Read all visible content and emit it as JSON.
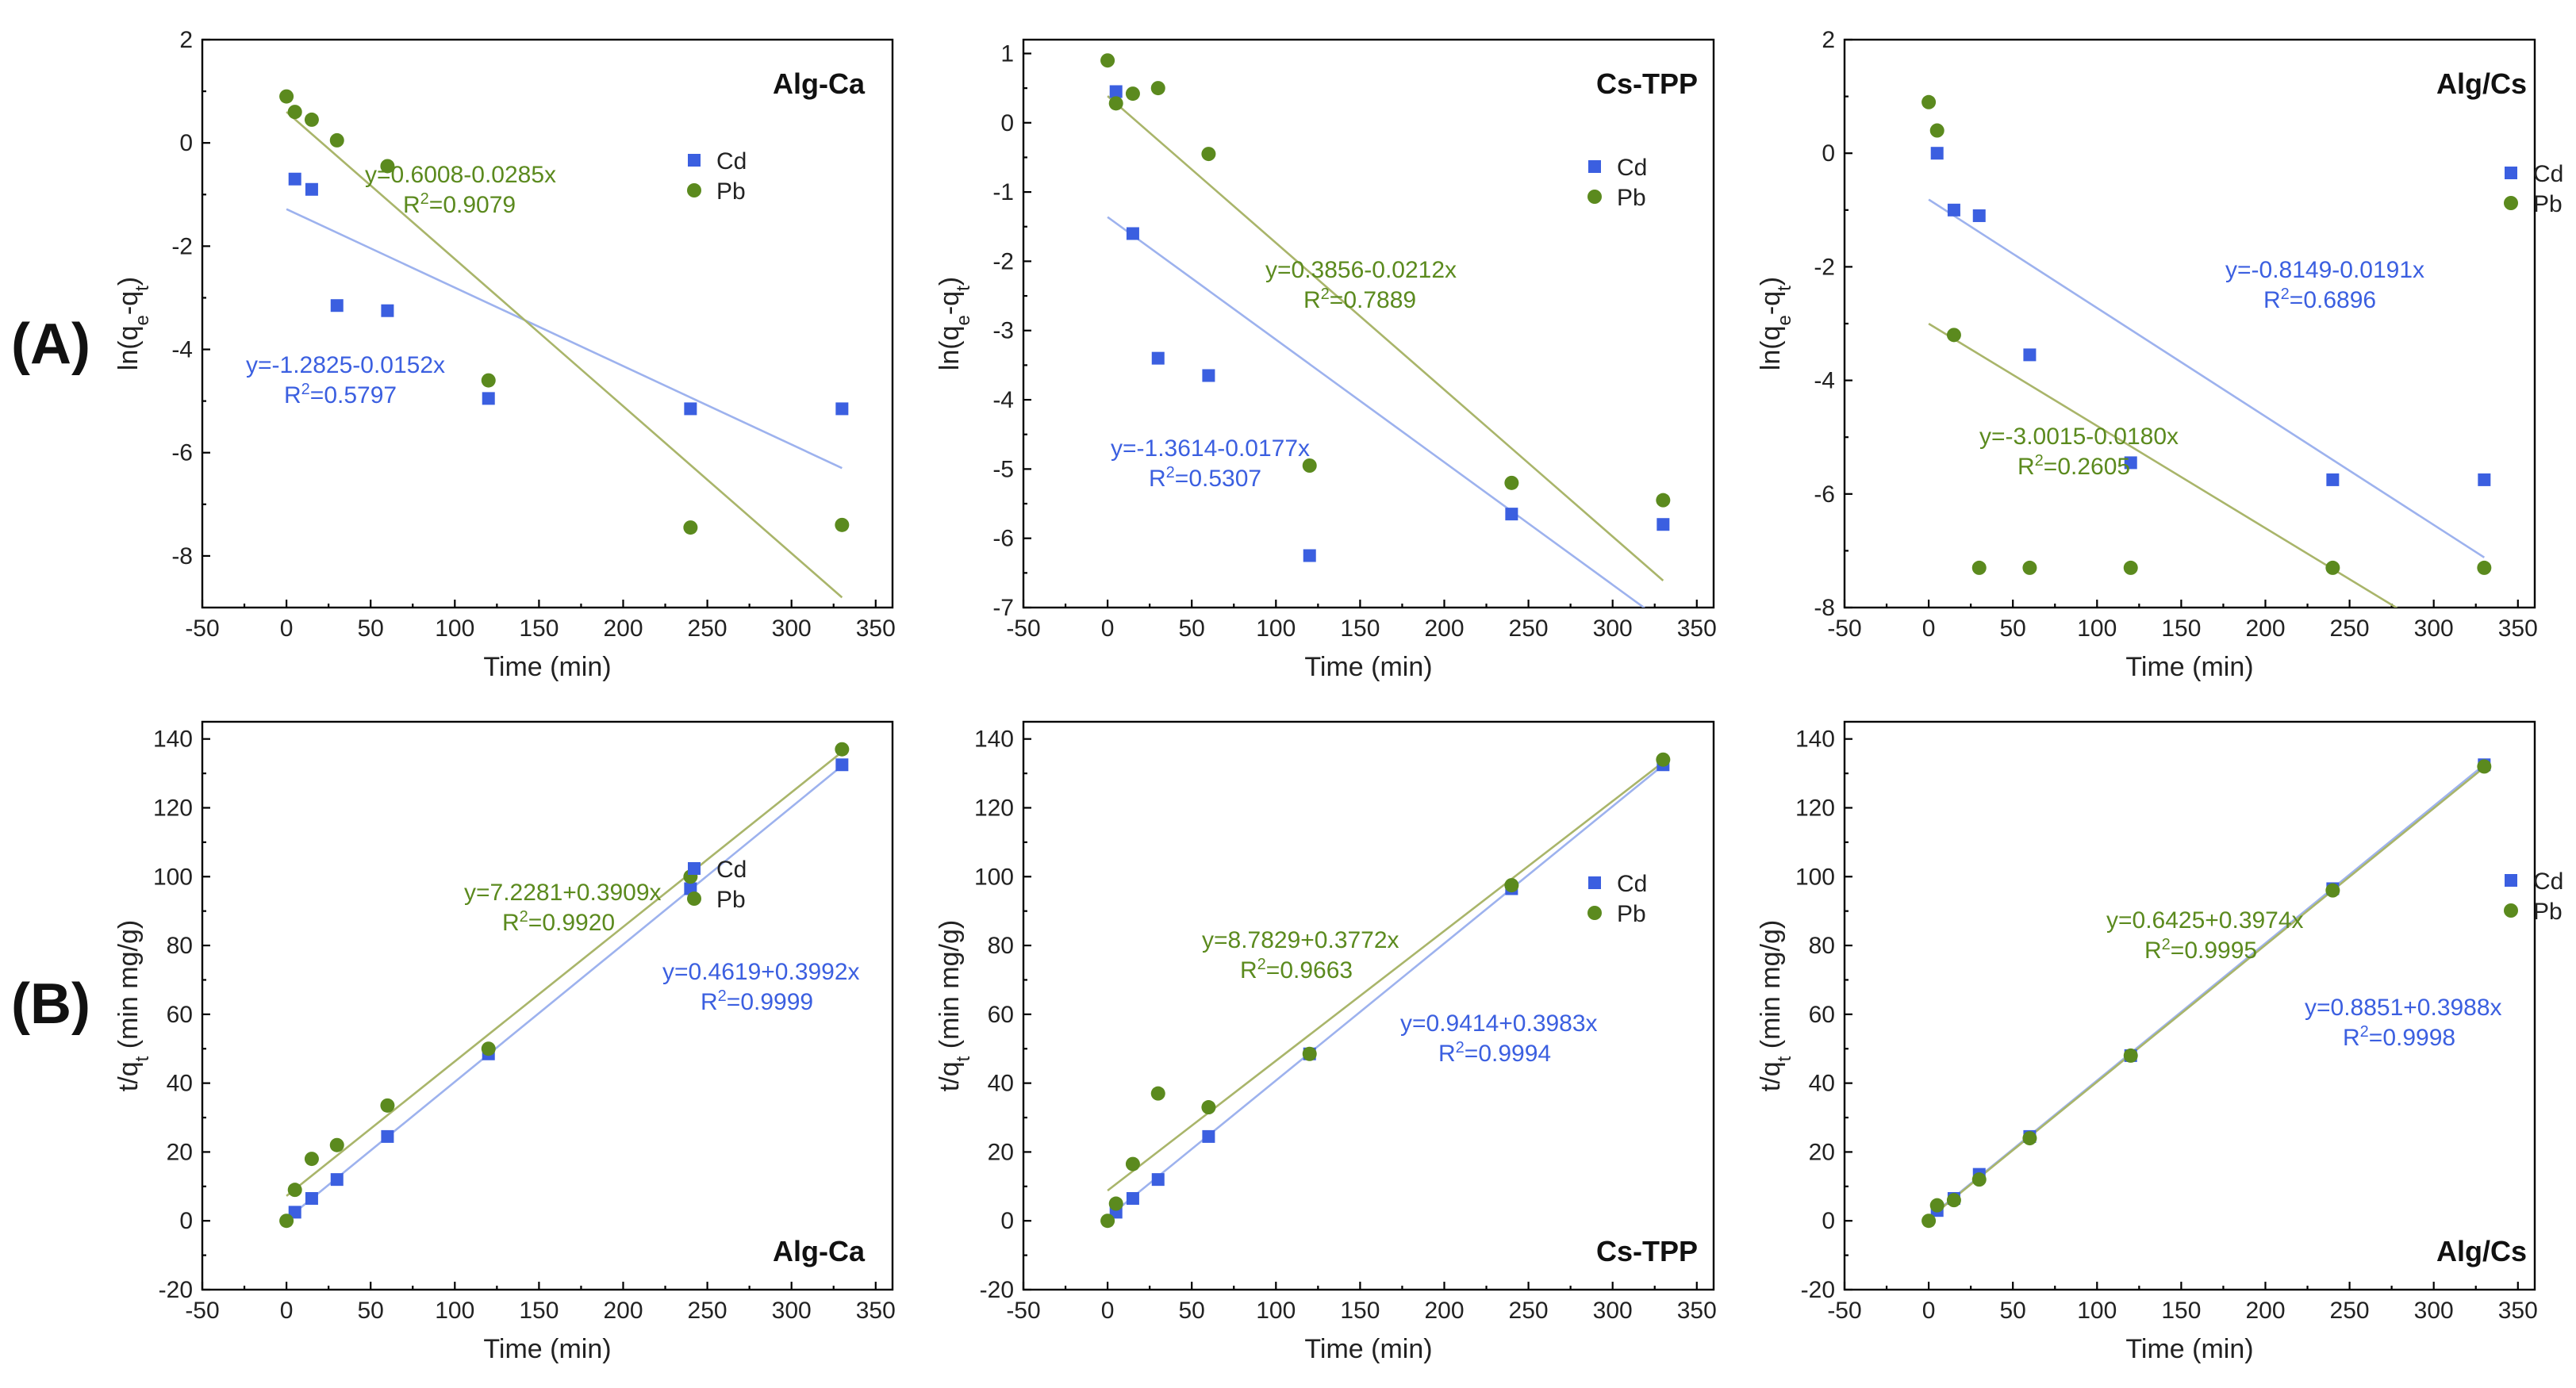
{
  "figure": {
    "row_labels": [
      "(A)",
      "(B)"
    ],
    "colors": {
      "Cd": "#3b5fe0",
      "Pb": "#5b8a1e",
      "Cd_line": "#9db2ee",
      "Pb_line": "#a9b56a"
    }
  },
  "chart_data": [
    {
      "type": "scatter",
      "title": "Alg-Ca",
      "xlabel": "Time (min)",
      "ylabel": {
        "base": "ln(q",
        "sub1": "e",
        "mid": "-q",
        "sub2": "t",
        "end": ")"
      },
      "xlim": [
        -50,
        360
      ],
      "ylim": [
        -9,
        2
      ],
      "xticks": [
        -50,
        0,
        50,
        100,
        150,
        200,
        250,
        300,
        350
      ],
      "yticks": [
        -8,
        -6,
        -4,
        -2,
        0,
        2
      ],
      "series": [
        {
          "name": "Cd",
          "marker": "square",
          "x": [
            5,
            15,
            30,
            60,
            120,
            240,
            330
          ],
          "y": [
            -0.7,
            -0.9,
            -3.15,
            -3.25,
            -4.95,
            -5.15,
            -5.15
          ],
          "fit": {
            "intercept": -1.2825,
            "slope": -0.0152,
            "x_range": [
              0,
              330
            ]
          },
          "equation": "y=-1.2825-0.0152x",
          "r2": "=0.5797"
        },
        {
          "name": "Pb",
          "marker": "circle",
          "x": [
            0,
            5,
            15,
            30,
            60,
            120,
            240,
            330
          ],
          "y": [
            0.9,
            0.6,
            0.45,
            0.05,
            -0.45,
            -4.6,
            -7.45,
            -7.4
          ],
          "fit": {
            "intercept": 0.6008,
            "slope": -0.0285,
            "x_range": [
              0,
              330
            ]
          },
          "equation": "y=0.6008-0.0285x",
          "r2": "=0.9079"
        }
      ]
    },
    {
      "type": "scatter",
      "title": "Cs-TPP",
      "xlabel": "Time (min)",
      "ylabel": {
        "base": "ln(q",
        "sub1": "e",
        "mid": "-q",
        "sub2": "t",
        "end": ")"
      },
      "xlim": [
        -50,
        360
      ],
      "ylim": [
        -7,
        1.2
      ],
      "xticks": [
        -50,
        0,
        50,
        100,
        150,
        200,
        250,
        300,
        350
      ],
      "yticks": [
        -7,
        -6,
        -5,
        -4,
        -3,
        -2,
        -1,
        0,
        1
      ],
      "series": [
        {
          "name": "Cd",
          "marker": "square",
          "x": [
            5,
            15,
            30,
            60,
            120,
            240,
            330
          ],
          "y": [
            0.45,
            -1.6,
            -3.4,
            -3.65,
            -6.25,
            -5.65,
            -5.8
          ],
          "fit": {
            "intercept": -1.3614,
            "slope": -0.0177,
            "x_range": [
              0,
              330
            ]
          },
          "equation": "y=-1.3614-0.0177x",
          "r2": "=0.5307"
        },
        {
          "name": "Pb",
          "marker": "circle",
          "x": [
            0,
            5,
            15,
            30,
            60,
            120,
            240,
            330
          ],
          "y": [
            0.9,
            0.28,
            0.42,
            0.5,
            -0.45,
            -4.95,
            -5.2,
            -5.45
          ],
          "fit": {
            "intercept": 0.3856,
            "slope": -0.0212,
            "x_range": [
              0,
              330
            ]
          },
          "equation": "y=0.3856-0.0212x",
          "r2": "=0.7889"
        }
      ]
    },
    {
      "type": "scatter",
      "title": "Alg/Cs",
      "xlabel": "Time (min)",
      "ylabel": {
        "base": "ln(q",
        "sub1": "e",
        "mid": "-q",
        "sub2": "t",
        "end": ")"
      },
      "xlim": [
        -50,
        360
      ],
      "ylim": [
        -8,
        2
      ],
      "xticks": [
        -50,
        0,
        50,
        100,
        150,
        200,
        250,
        300,
        350
      ],
      "yticks": [
        -8,
        -6,
        -4,
        -2,
        0,
        2
      ],
      "series": [
        {
          "name": "Cd",
          "marker": "square",
          "x": [
            5,
            15,
            30,
            60,
            120,
            240,
            330
          ],
          "y": [
            0.0,
            -1.0,
            -1.1,
            -3.55,
            -5.45,
            -5.75,
            -5.75
          ],
          "fit": {
            "intercept": -0.8149,
            "slope": -0.0191,
            "x_range": [
              0,
              330
            ]
          },
          "equation": "y=-0.8149-0.0191x",
          "r2": "=0.6896"
        },
        {
          "name": "Pb",
          "marker": "circle",
          "x": [
            0,
            5,
            15,
            30,
            60,
            120,
            240,
            330
          ],
          "y": [
            0.9,
            0.4,
            -3.2,
            -7.3,
            -7.3,
            -7.3,
            -7.3,
            -7.3
          ],
          "fit": {
            "intercept": -3.0015,
            "slope": -0.018,
            "x_range": [
              0,
              330
            ]
          },
          "equation": "y=-3.0015-0.0180x",
          "r2": "=0.2605"
        }
      ]
    },
    {
      "type": "scatter",
      "title": "Alg-Ca",
      "xlabel": "Time (min)",
      "ylabel": {
        "base": "t/q",
        "sub1": "t",
        "mid": " (min mg/g)",
        "sub2": "",
        "end": ""
      },
      "xlim": [
        -50,
        360
      ],
      "ylim": [
        -20,
        145
      ],
      "xticks": [
        -50,
        0,
        50,
        100,
        150,
        200,
        250,
        300,
        350
      ],
      "yticks": [
        -20,
        0,
        20,
        40,
        60,
        80,
        100,
        120,
        140
      ],
      "series": [
        {
          "name": "Cd",
          "marker": "square",
          "x": [
            5,
            15,
            30,
            60,
            120,
            240,
            330
          ],
          "y": [
            2.5,
            6.5,
            12,
            24.5,
            48.5,
            96.5,
            132.5
          ],
          "fit": {
            "intercept": 0.4619,
            "slope": 0.3992,
            "x_range": [
              0,
              330
            ]
          },
          "equation": "y=0.4619+0.3992x",
          "r2": "=0.9999"
        },
        {
          "name": "Pb",
          "marker": "circle",
          "x": [
            0,
            5,
            15,
            30,
            60,
            120,
            240,
            330
          ],
          "y": [
            0,
            9,
            18,
            22,
            33.5,
            50,
            100,
            137
          ],
          "fit": {
            "intercept": 7.2281,
            "slope": 0.3909,
            "x_range": [
              0,
              330
            ]
          },
          "equation": "y=7.2281+0.3909x",
          "r2": "=0.9920"
        }
      ]
    },
    {
      "type": "scatter",
      "title": "Cs-TPP",
      "xlabel": "Time (min)",
      "ylabel": {
        "base": "t/q",
        "sub1": "t",
        "mid": " (min mg/g)",
        "sub2": "",
        "end": ""
      },
      "xlim": [
        -50,
        360
      ],
      "ylim": [
        -20,
        145
      ],
      "xticks": [
        -50,
        0,
        50,
        100,
        150,
        200,
        250,
        300,
        350
      ],
      "yticks": [
        -20,
        0,
        20,
        40,
        60,
        80,
        100,
        120,
        140
      ],
      "series": [
        {
          "name": "Cd",
          "marker": "square",
          "x": [
            5,
            15,
            30,
            60,
            120,
            240,
            330
          ],
          "y": [
            2.5,
            6.5,
            12,
            24.5,
            48.5,
            96.5,
            132.5
          ],
          "fit": {
            "intercept": 0.9414,
            "slope": 0.3983,
            "x_range": [
              0,
              330
            ]
          },
          "equation": "y=0.9414+0.3983x",
          "r2": "=0.9994"
        },
        {
          "name": "Pb",
          "marker": "circle",
          "x": [
            0,
            5,
            15,
            30,
            60,
            120,
            240,
            330
          ],
          "y": [
            0,
            5,
            16.5,
            37,
            33,
            48.5,
            97.5,
            134
          ],
          "fit": {
            "intercept": 8.7829,
            "slope": 0.3772,
            "x_range": [
              0,
              330
            ]
          },
          "equation": "y=8.7829+0.3772x",
          "r2": "=0.9663"
        }
      ]
    },
    {
      "type": "scatter",
      "title": "Alg/Cs",
      "xlabel": "Time (min)",
      "ylabel": {
        "base": "t/q",
        "sub1": "t",
        "mid": " (min mg/g)",
        "sub2": "",
        "end": ""
      },
      "xlim": [
        -50,
        360
      ],
      "ylim": [
        -20,
        145
      ],
      "xticks": [
        -50,
        0,
        50,
        100,
        150,
        200,
        250,
        300,
        350
      ],
      "yticks": [
        -20,
        0,
        20,
        40,
        60,
        80,
        100,
        120,
        140
      ],
      "series": [
        {
          "name": "Cd",
          "marker": "square",
          "x": [
            5,
            15,
            30,
            60,
            120,
            240,
            330
          ],
          "y": [
            3,
            6.5,
            13.5,
            24.5,
            48,
            96.5,
            132.5
          ],
          "fit": {
            "intercept": 0.8851,
            "slope": 0.3988,
            "x_range": [
              0,
              330
            ]
          },
          "equation": "y=0.8851+0.3988x",
          "r2": "=0.9998"
        },
        {
          "name": "Pb",
          "marker": "circle",
          "x": [
            0,
            5,
            15,
            30,
            60,
            120,
            240,
            330
          ],
          "y": [
            0,
            4.5,
            6,
            12,
            24,
            48,
            96,
            132
          ],
          "fit": {
            "intercept": 0.6425,
            "slope": 0.3974,
            "x_range": [
              0,
              330
            ]
          },
          "equation": "y=0.6425+0.3974x",
          "r2": "=0.9995"
        }
      ]
    }
  ]
}
